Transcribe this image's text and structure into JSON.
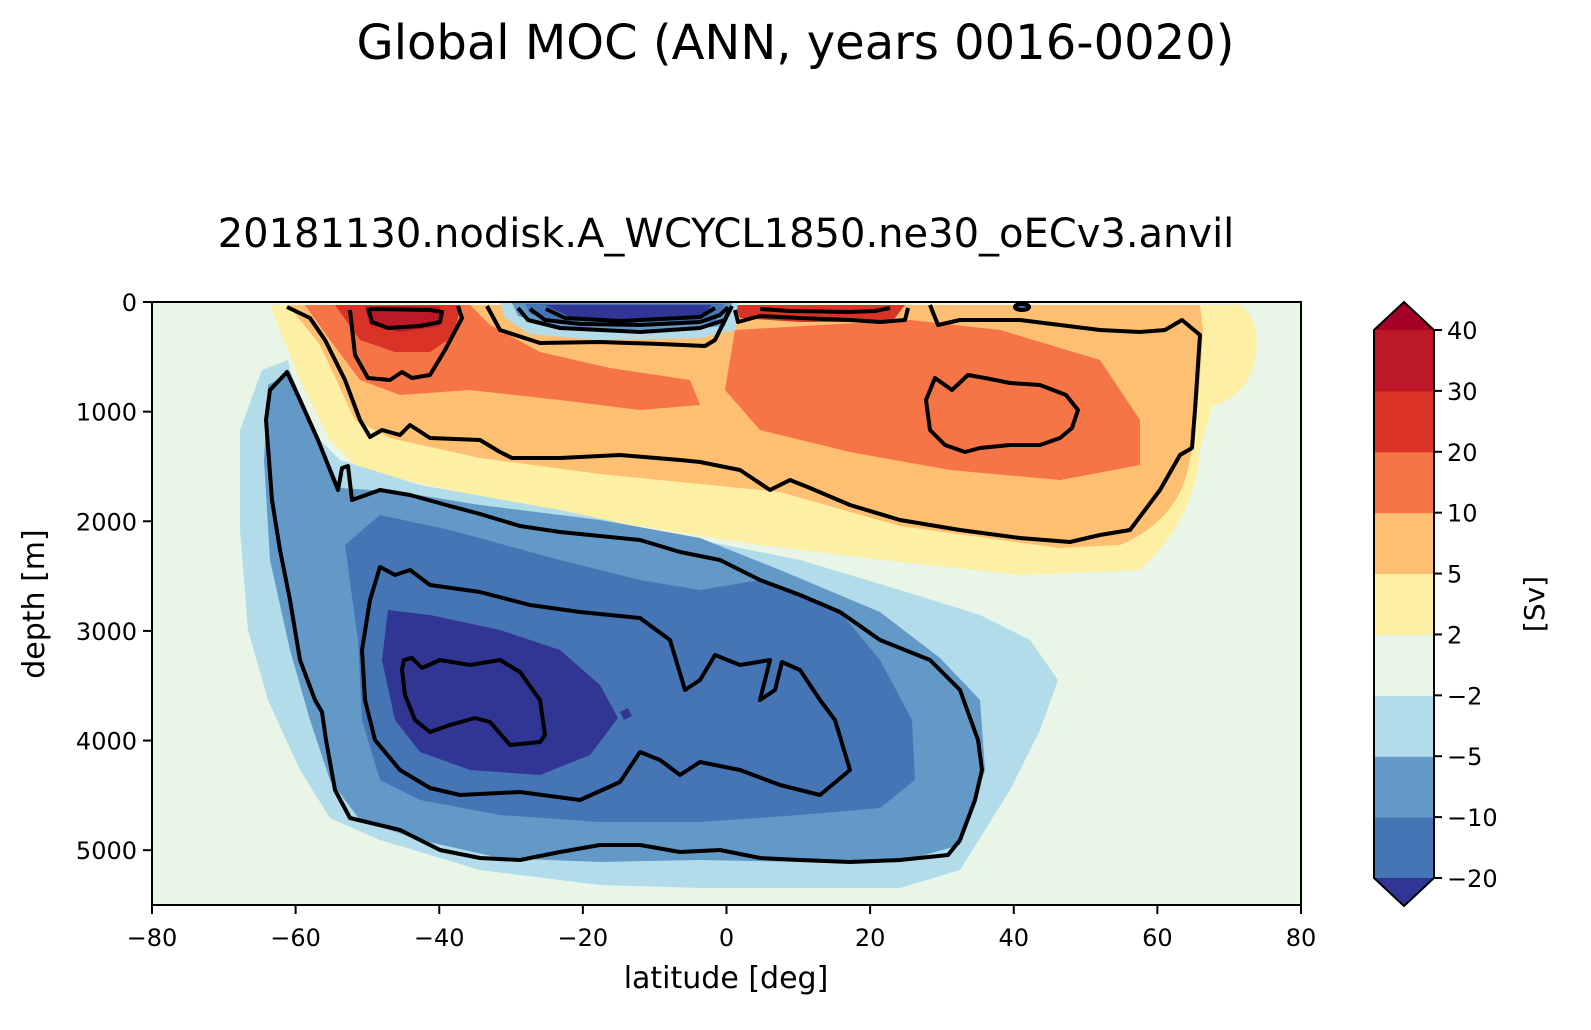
{
  "suptitle": "Global MOC (ANN, years 0016-0020)",
  "chart_data": {
    "type": "contourf",
    "title": "20181130.nodisk.A_WCYCL1850.ne30_oECv3.anvil",
    "xlabel": "latitude [deg]",
    "ylabel": "depth [m]",
    "xlim": [
      -80,
      80
    ],
    "ylim": [
      5500,
      0
    ],
    "xticks": [
      -80,
      -60,
      -40,
      -20,
      0,
      20,
      40,
      60,
      80
    ],
    "xtick_labels": [
      "−80",
      "−60",
      "−40",
      "−20",
      "0",
      "20",
      "40",
      "60",
      "80"
    ],
    "yticks": [
      0,
      1000,
      2000,
      3000,
      4000,
      5000
    ],
    "ytick_labels": [
      "0",
      "1000",
      "2000",
      "3000",
      "4000",
      "5000"
    ],
    "colorbar": {
      "label": "[Sv]",
      "extend": "both",
      "levels": [
        -20,
        -10,
        -5,
        -2,
        2,
        5,
        10,
        20,
        30,
        40
      ],
      "tick_labels": [
        "−20",
        "−10",
        "−5",
        "−2",
        "2",
        "5",
        "10",
        "20",
        "30",
        "40"
      ],
      "under_color": "#313695",
      "over_color": "#a50026",
      "colors": [
        "#4575b4",
        "#6399c7",
        "#b3dcea",
        "#e9f5e6",
        "#fdefa4",
        "#fdbf71",
        "#f57547",
        "#d93328",
        "#bd1827"
      ]
    },
    "black_contour_levels": [
      -10,
      -5,
      5,
      10,
      20
    ],
    "features": [
      {
        "name": "upper-cell-positive",
        "sign": "positive",
        "lat_range": [
          -57,
          66
        ],
        "depth_range": [
          0,
          2500
        ],
        "max_value": 20,
        "core_lat": 40,
        "core_depth": 1000
      },
      {
        "name": "deep-cell-negative",
        "sign": "negative",
        "lat_range": [
          -68,
          48
        ],
        "depth_range": [
          600,
          5400
        ],
        "min_value": -20,
        "core_lat": -30,
        "core_depth": 3700
      },
      {
        "name": "tropical-surface-negative",
        "sign": "negative",
        "lat_range": [
          -30,
          0
        ],
        "depth_range": [
          0,
          300
        ],
        "min_value": -20
      },
      {
        "name": "southern-surface-positive",
        "sign": "positive",
        "lat_range": [
          -52,
          -40
        ],
        "depth_range": [
          0,
          500
        ],
        "max_value": 30
      }
    ]
  },
  "colors": {
    "background": "#ffffff",
    "contour_line": "#000000",
    "axes": "#000000"
  }
}
